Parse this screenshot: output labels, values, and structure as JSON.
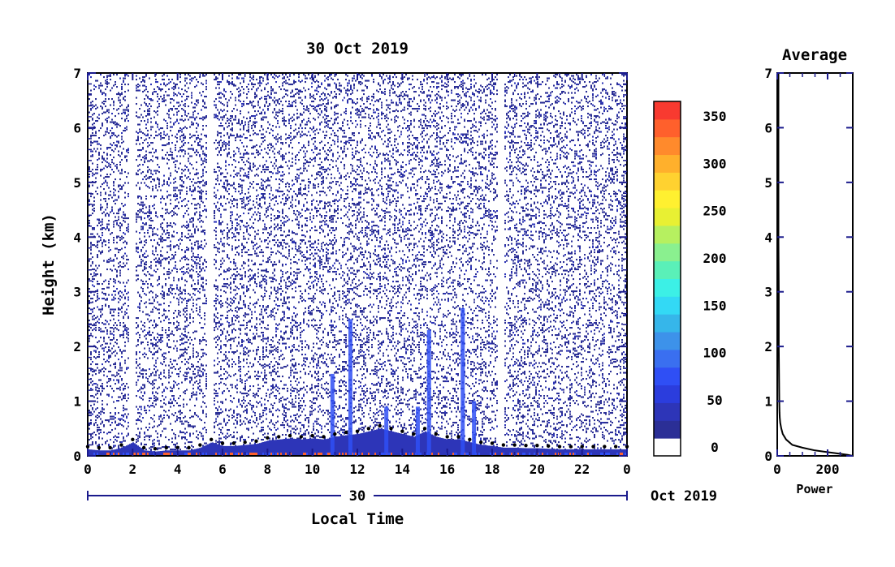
{
  "chart_data": [
    {
      "type": "heatmap",
      "title": "30 Oct 2019",
      "xlabel": "Local Time",
      "ylabel": "Height (km)",
      "x_ticks": [
        "0",
        "2",
        "4",
        "6",
        "8",
        "10",
        "12",
        "14",
        "16",
        "18",
        "20",
        "22",
        "0"
      ],
      "y_ticks": [
        "0",
        "1",
        "2",
        "3",
        "4",
        "5",
        "6",
        "7"
      ],
      "xlim": [
        0,
        24
      ],
      "ylim": [
        0,
        7
      ],
      "date_axis": {
        "day_label": "30",
        "month_year_label": "Oct 2019"
      },
      "colorbar": {
        "tick_labels": [
          "0",
          "50",
          "100",
          "150",
          "200",
          "250",
          "300",
          "350"
        ],
        "range": [
          0,
          375
        ],
        "colors": [
          "#ffffff",
          "#2b2f96",
          "#2d35b8",
          "#2b3ddd",
          "#2f4ff5",
          "#3a6ff0",
          "#3d92ea",
          "#36b6ea",
          "#33d9f5",
          "#3cf0e6",
          "#5af0b8",
          "#8af08f",
          "#b6f060",
          "#e8f033",
          "#fff030",
          "#ffd230",
          "#ffb02c",
          "#ff8a2c",
          "#ff602c",
          "#f83a30"
        ]
      },
      "series": [
        {
          "values": [
            [
              0.0,
              0.12
            ],
            [
              0.5,
              0.1
            ],
            [
              1.0,
              0.1
            ],
            [
              1.5,
              0.15
            ],
            [
              2.0,
              0.25
            ],
            [
              2.5,
              0.1
            ],
            [
              3.0,
              0.08
            ],
            [
              3.5,
              0.1
            ],
            [
              4.0,
              0.1
            ],
            [
              4.5,
              0.1
            ],
            [
              5.0,
              0.15
            ],
            [
              5.5,
              0.25
            ],
            [
              6.0,
              0.18
            ],
            [
              6.5,
              0.18
            ],
            [
              7.0,
              0.2
            ],
            [
              7.5,
              0.22
            ],
            [
              8.0,
              0.28
            ],
            [
              8.5,
              0.3
            ],
            [
              9.0,
              0.32
            ],
            [
              9.5,
              0.3
            ],
            [
              10.0,
              0.32
            ],
            [
              10.5,
              0.3
            ],
            [
              11.0,
              0.35
            ],
            [
              11.5,
              0.38
            ],
            [
              12.0,
              0.4
            ],
            [
              12.5,
              0.45
            ],
            [
              13.0,
              0.5
            ],
            [
              13.5,
              0.45
            ],
            [
              14.0,
              0.4
            ],
            [
              14.5,
              0.35
            ],
            [
              15.0,
              0.45
            ],
            [
              15.5,
              0.35
            ],
            [
              16.0,
              0.3
            ],
            [
              16.5,
              0.3
            ],
            [
              17.0,
              0.25
            ],
            [
              17.5,
              0.2
            ],
            [
              18.0,
              0.18
            ],
            [
              18.5,
              0.15
            ],
            [
              19.0,
              0.15
            ],
            [
              19.5,
              0.14
            ],
            [
              20.0,
              0.14
            ],
            [
              20.5,
              0.13
            ],
            [
              21.0,
              0.12
            ],
            [
              21.5,
              0.12
            ],
            [
              22.0,
              0.12
            ],
            [
              22.5,
              0.12
            ],
            [
              23.0,
              0.12
            ],
            [
              23.5,
              0.12
            ],
            [
              24.0,
              0.12
            ]
          ]
        }
      ],
      "gaps": [
        [
          1.8,
          2.1
        ],
        [
          5.3,
          5.6
        ],
        [
          18.2,
          18.5
        ]
      ]
    },
    {
      "type": "line",
      "title": "Average",
      "xlabel": "Power",
      "x_ticks": [
        "0",
        "200"
      ],
      "y_ticks": [
        "0",
        "1",
        "2",
        "3",
        "4",
        "5",
        "6",
        "7"
      ],
      "xlim": [
        0,
        300
      ],
      "ylim": [
        0,
        7
      ],
      "series": [
        {
          "x": [
            300,
            280,
            230,
            150,
            100,
            60,
            35,
            22,
            16,
            12,
            10,
            9,
            8,
            7,
            6,
            6,
            5,
            5,
            5,
            5,
            5
          ],
          "y": [
            0.0,
            0.02,
            0.05,
            0.1,
            0.15,
            0.2,
            0.3,
            0.4,
            0.5,
            0.6,
            0.7,
            0.8,
            1.0,
            1.5,
            2.0,
            3.0,
            4.0,
            5.0,
            6.0,
            6.5,
            7.0
          ]
        }
      ]
    }
  ]
}
